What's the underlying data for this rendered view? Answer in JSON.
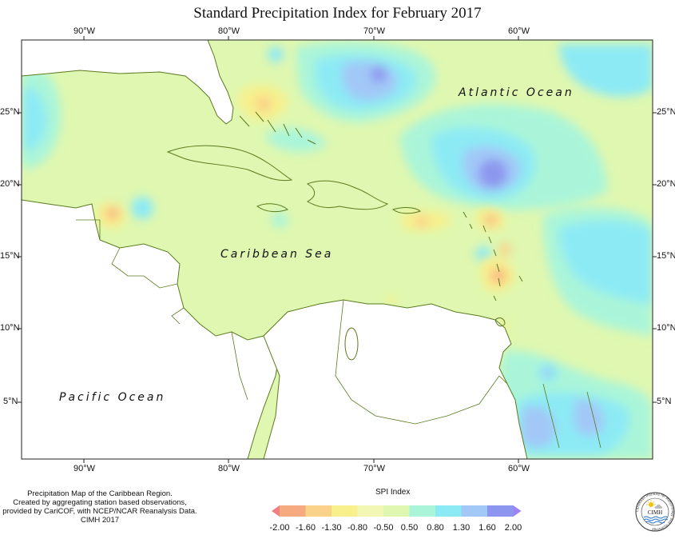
{
  "title": "Standard Precipitation Index for February 2017",
  "longitude_ticks": [
    "90°W",
    "80°W",
    "70°W",
    "60°W"
  ],
  "latitude_ticks": [
    "25°N",
    "20°N",
    "15°N",
    "10°N",
    "5°N"
  ],
  "ocean_labels": {
    "atlantic": "Atlantic Ocean",
    "caribbean": "Caribbean Sea",
    "pacific": "Pacific Ocean"
  },
  "credits": [
    "Precipitation Map of the Caribbean Region.",
    "Created by aggregating station based observations,",
    "provided by CariCOF, with NCEP/NCAR Reanalysis Data.",
    "CIMH 2017"
  ],
  "legend": {
    "title": "SPI Index",
    "labels": [
      "-2.00",
      "-1.60",
      "-1.30",
      "-0.80",
      "-0.50",
      "0.50",
      "0.80",
      "1.30",
      "1.60",
      "2.00"
    ],
    "colors": [
      "#f08080",
      "#f5aa80",
      "#fad28a",
      "#f7f08c",
      "#f3f7b5",
      "#dff7b0",
      "#aaf5d9",
      "#8ceaf4",
      "#a2c8f7",
      "#8c96ee",
      "#9a85f0"
    ]
  },
  "logo": {
    "abbr": "CIMH",
    "ring_text": "Caribbean Institute for Meteorology and Hydrology"
  }
}
